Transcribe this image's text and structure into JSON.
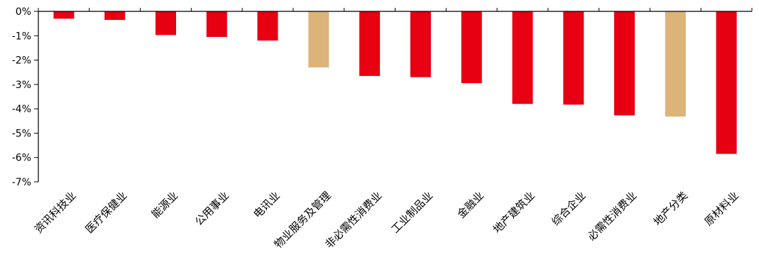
{
  "chart_data": {
    "type": "bar",
    "categories": [
      "资讯科技业",
      "医疗保健业",
      "能源业",
      "公用事业",
      "电讯业",
      "物业服务及管理",
      "非必需性消费业",
      "工业制品业",
      "金融业",
      "地产建筑业",
      "综合企业",
      "必需性消费业",
      "地产分类",
      "原材料业"
    ],
    "values": [
      -0.3,
      -0.35,
      -0.97,
      -1.05,
      -1.2,
      -2.3,
      -2.65,
      -2.7,
      -2.95,
      -3.8,
      -3.83,
      -4.27,
      -4.32,
      -5.85
    ],
    "highlight": [
      false,
      false,
      false,
      false,
      false,
      true,
      false,
      false,
      false,
      false,
      false,
      false,
      true,
      false
    ],
    "colors": {
      "default": "#e60012",
      "highlight": "#dcb479",
      "axis": "#000000"
    },
    "ylim": [
      -7,
      0
    ],
    "yticks": [
      0,
      -1,
      -2,
      -3,
      -4,
      -5,
      -6,
      -7
    ],
    "ytick_labels": [
      "0%",
      "-1%",
      "-2%",
      "-3%",
      "-4%",
      "-5%",
      "-6%",
      "-7%"
    ],
    "title": "",
    "xlabel": "",
    "ylabel": "",
    "grid": false,
    "legend": "none"
  }
}
